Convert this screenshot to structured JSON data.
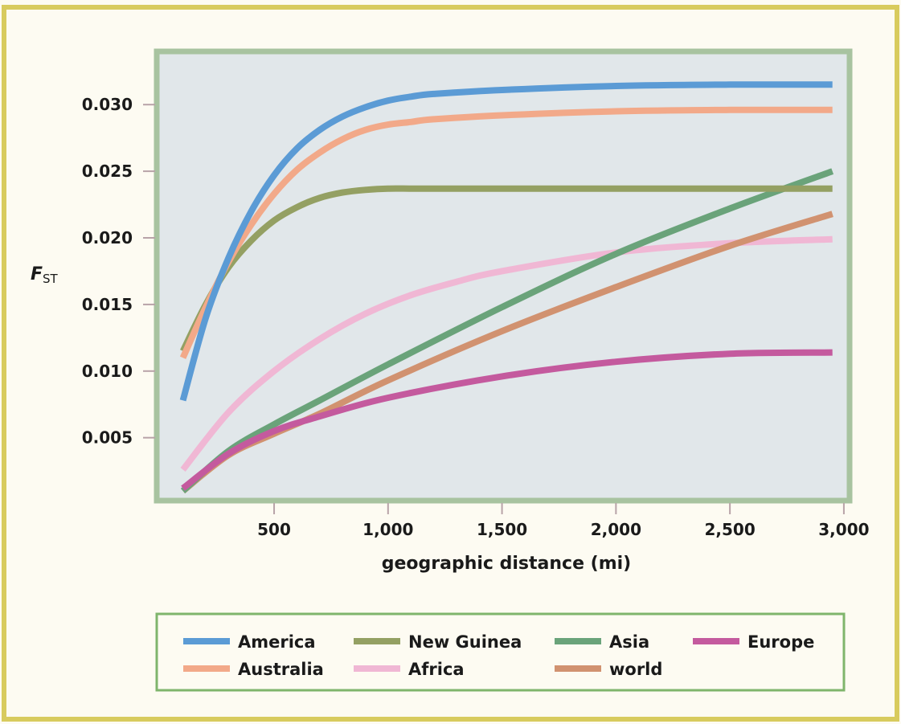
{
  "chart_data": {
    "type": "line",
    "xlabel": "geographic distance (mi)",
    "ylabel": {
      "main": "F",
      "sub": "ST"
    },
    "xlim": [
      0,
      3000
    ],
    "ylim": [
      0,
      0.0335
    ],
    "x_ticks": [
      500,
      1000,
      1500,
      2000,
      2500,
      3000
    ],
    "x_tick_labels": [
      "500",
      "1,000",
      "1,500",
      "2,000",
      "2,500",
      "3,000"
    ],
    "y_ticks": [
      0.005,
      0.01,
      0.015,
      0.02,
      0.025,
      0.03
    ],
    "y_tick_labels": [
      "0.005",
      "0.010",
      "0.015",
      "0.020",
      "0.025",
      "0.030"
    ],
    "grid": false,
    "legend_position": "bottom",
    "series": [
      {
        "name": "America",
        "color": "#5b9bd5",
        "x": [
          100,
          200,
          300,
          400,
          500,
          600,
          700,
          800,
          900,
          1000,
          1100,
          1200,
          1500,
          2000,
          2500,
          2950
        ],
        "y": [
          0.0078,
          0.014,
          0.0185,
          0.022,
          0.0247,
          0.0267,
          0.0281,
          0.0291,
          0.0298,
          0.0303,
          0.0306,
          0.0308,
          0.0311,
          0.0314,
          0.0315,
          0.0315
        ]
      },
      {
        "name": "Australia",
        "color": "#f2a989",
        "x": [
          100,
          200,
          300,
          400,
          500,
          600,
          700,
          800,
          900,
          1000,
          1100,
          1200,
          1500,
          2000,
          2500,
          2950
        ],
        "y": [
          0.011,
          0.0148,
          0.0182,
          0.021,
          0.0233,
          0.0251,
          0.0264,
          0.0274,
          0.0281,
          0.0285,
          0.0287,
          0.0289,
          0.0292,
          0.0295,
          0.0296,
          0.0296
        ]
      },
      {
        "name": "New Guinea",
        "color": "#94a063",
        "x": [
          100,
          200,
          300,
          400,
          500,
          600,
          700,
          800,
          900,
          1000,
          1100,
          1200,
          1500,
          2000,
          2500,
          2950
        ],
        "y": [
          0.0115,
          0.015,
          0.0178,
          0.0198,
          0.0213,
          0.0223,
          0.023,
          0.0234,
          0.0236,
          0.0237,
          0.0237,
          0.0237,
          0.0237,
          0.0237,
          0.0237,
          0.0237
        ]
      },
      {
        "name": "Asia",
        "color": "#6aa37a",
        "x": [
          100,
          300,
          500,
          700,
          1000,
          1500,
          2000,
          2500,
          2950
        ],
        "y": [
          0.001,
          0.004,
          0.006,
          0.0078,
          0.0105,
          0.0148,
          0.0188,
          0.0222,
          0.025
        ]
      },
      {
        "name": "Europe",
        "color": "#c45a9e",
        "x": [
          100,
          300,
          500,
          700,
          1000,
          1500,
          2000,
          2500,
          2950
        ],
        "y": [
          0.0012,
          0.0038,
          0.0055,
          0.0066,
          0.008,
          0.0096,
          0.0107,
          0.0113,
          0.0114
        ]
      },
      {
        "name": "Africa",
        "color": "#f0b7d4",
        "x": [
          100,
          300,
          500,
          700,
          900,
          1100,
          1300,
          1500,
          2000,
          2500,
          2950
        ],
        "y": [
          0.0026,
          0.0069,
          0.01,
          0.0124,
          0.0143,
          0.0157,
          0.0167,
          0.0175,
          0.0189,
          0.0196,
          0.0199
        ]
      },
      {
        "name": "world",
        "color": "#d19270",
        "x": [
          100,
          300,
          500,
          700,
          1000,
          1500,
          2000,
          2500,
          2950
        ],
        "y": [
          0.001,
          0.0037,
          0.0053,
          0.0068,
          0.0093,
          0.013,
          0.0163,
          0.0194,
          0.0218
        ]
      }
    ]
  },
  "legend_rows": [
    [
      "America",
      "New Guinea",
      "Asia",
      "Europe"
    ],
    [
      "Australia",
      "Africa",
      "world"
    ]
  ],
  "frame": {
    "outer_border_color": "#d8cb5e",
    "plot_border_color": "#a8c3a0",
    "plot_background": "#e1e7ea",
    "legend_border_color": "#7fb56c"
  }
}
